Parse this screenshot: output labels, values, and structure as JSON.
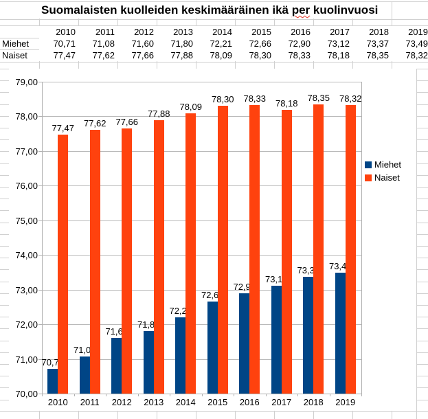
{
  "title": {
    "before": "Suomalaisten kuolleiden keskimääräinen ikä ",
    "misspelled_word": "per",
    "after": " kuolinvuosi"
  },
  "table": {
    "years": [
      "2010",
      "2011",
      "2012",
      "2013",
      "2014",
      "2015",
      "2016",
      "2017",
      "2018",
      "2019"
    ],
    "rows": [
      {
        "label": "Miehet",
        "values": [
          "70,71",
          "71,08",
          "71,60",
          "71,80",
          "72,21",
          "72,66",
          "72,90",
          "73,12",
          "73,37",
          "73,49"
        ]
      },
      {
        "label": "Naiset",
        "values": [
          "77,47",
          "77,62",
          "77,66",
          "77,88",
          "78,09",
          "78,30",
          "78,33",
          "78,18",
          "78,35",
          "78,32"
        ]
      }
    ]
  },
  "chart_data": {
    "type": "bar",
    "categories": [
      "2010",
      "2011",
      "2012",
      "2013",
      "2014",
      "2015",
      "2016",
      "2017",
      "2018",
      "2019"
    ],
    "series": [
      {
        "name": "Miehet",
        "color": "#004586",
        "values": [
          70.71,
          71.08,
          71.6,
          71.8,
          72.21,
          72.66,
          72.9,
          73.12,
          73.37,
          73.49
        ]
      },
      {
        "name": "Naiset",
        "color": "#FF420E",
        "values": [
          77.47,
          77.62,
          77.66,
          77.88,
          78.09,
          78.3,
          78.33,
          78.18,
          78.35,
          78.32
        ]
      }
    ],
    "ylim": [
      70,
      79
    ],
    "ytick_step": 1,
    "ytick_labels_top_to_bottom": [
      "79,00",
      "78,00",
      "77,00",
      "76,00",
      "75,00",
      "74,00",
      "73,00",
      "72,00",
      "71,00",
      "70,00"
    ],
    "grid": true,
    "legend_position": "right",
    "data_labels": true,
    "decimal_separator": ","
  },
  "colors": {
    "series_miehet": "#004586",
    "series_naiset": "#FF420E",
    "sheet_gridline": "#d0d0d0",
    "chart_gridline": "#b9b9b9",
    "spellcheck_underline": "#e33324",
    "text": "#000000",
    "background": "#ffffff"
  }
}
